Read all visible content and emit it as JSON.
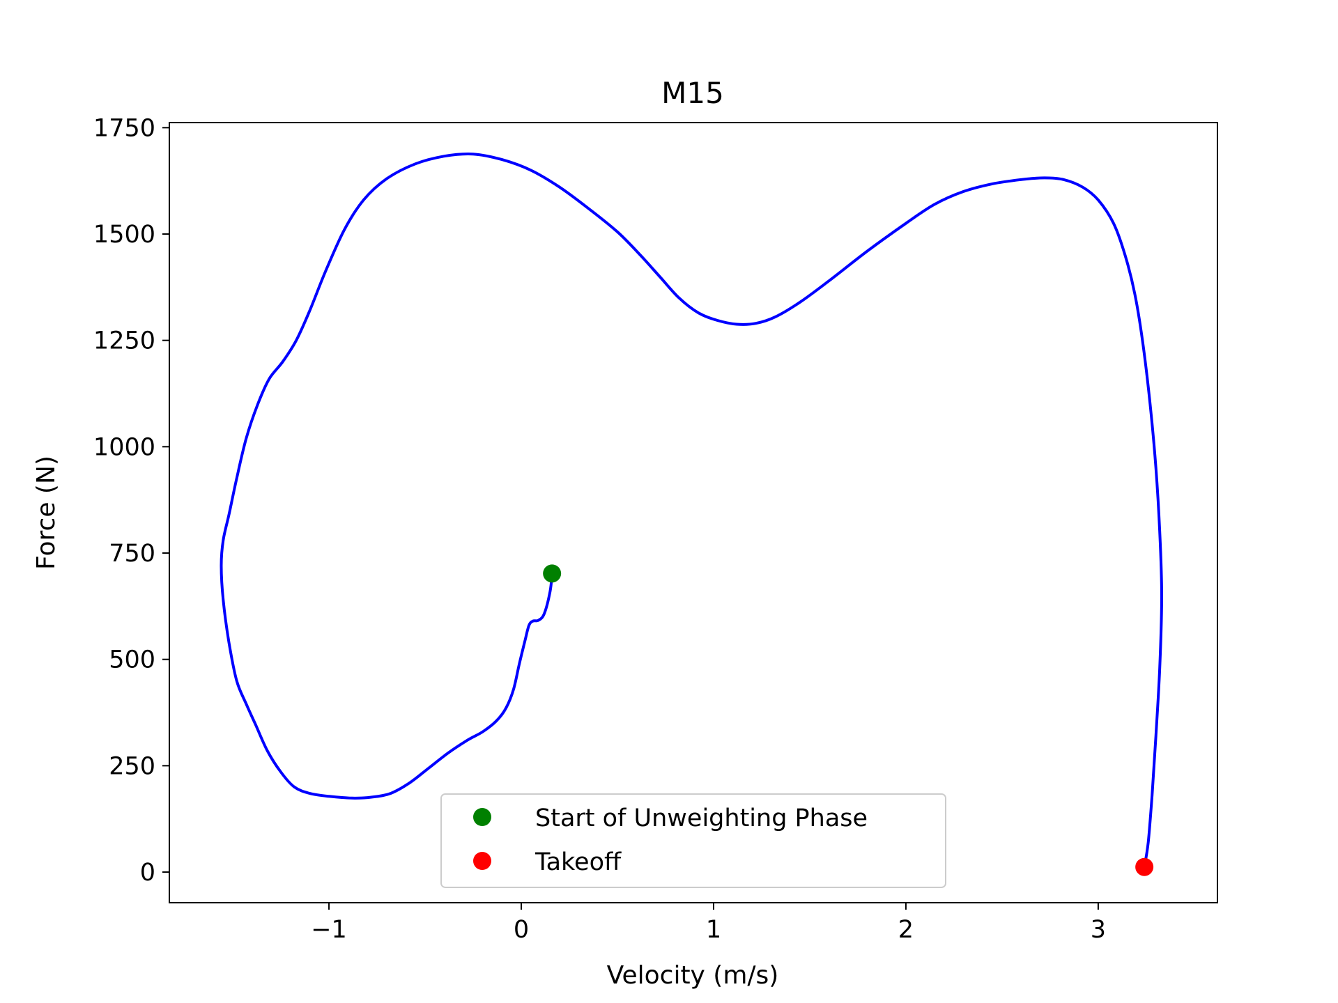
{
  "chart_data": {
    "type": "line",
    "title": "M15",
    "xlabel": "Velocity (m/s)",
    "ylabel": "Force (N)",
    "xlim": [
      -1.83,
      3.62
    ],
    "ylim": [
      -72,
      1762
    ],
    "xticks": [
      -1,
      0,
      1,
      2,
      3
    ],
    "xtick_labels": [
      "−1",
      "0",
      "1",
      "2",
      "3"
    ],
    "yticks": [
      0,
      250,
      500,
      750,
      1000,
      1250,
      1500,
      1750
    ],
    "ytick_labels": [
      "0",
      "250",
      "500",
      "750",
      "1000",
      "1250",
      "1500",
      "1750"
    ],
    "grid": false,
    "legend_position": "lower-center",
    "colors": {
      "curve": "#0000ff",
      "start": "#008000",
      "takeoff": "#ff0000"
    },
    "series": [
      {
        "color": "#0000ff",
        "points": [
          [
            0.16,
            700
          ],
          [
            0.15,
            660
          ],
          [
            0.12,
            608
          ],
          [
            0.09,
            592
          ],
          [
            0.06,
            590
          ],
          [
            0.04,
            580
          ],
          [
            0.02,
            545
          ],
          [
            -0.01,
            490
          ],
          [
            -0.04,
            430
          ],
          [
            -0.08,
            385
          ],
          [
            -0.13,
            355
          ],
          [
            -0.2,
            330
          ],
          [
            -0.28,
            310
          ],
          [
            -0.38,
            280
          ],
          [
            -0.48,
            245
          ],
          [
            -0.58,
            210
          ],
          [
            -0.68,
            185
          ],
          [
            -0.78,
            176
          ],
          [
            -0.88,
            174
          ],
          [
            -1.0,
            178
          ],
          [
            -1.1,
            185
          ],
          [
            -1.18,
            200
          ],
          [
            -1.25,
            235
          ],
          [
            -1.32,
            285
          ],
          [
            -1.38,
            345
          ],
          [
            -1.43,
            395
          ],
          [
            -1.48,
            450
          ],
          [
            -1.52,
            540
          ],
          [
            -1.55,
            640
          ],
          [
            -1.56,
            720
          ],
          [
            -1.55,
            780
          ],
          [
            -1.52,
            840
          ],
          [
            -1.48,
            925
          ],
          [
            -1.43,
            1020
          ],
          [
            -1.37,
            1100
          ],
          [
            -1.31,
            1160
          ],
          [
            -1.24,
            1200
          ],
          [
            -1.17,
            1250
          ],
          [
            -1.1,
            1320
          ],
          [
            -1.02,
            1410
          ],
          [
            -0.92,
            1510
          ],
          [
            -0.82,
            1580
          ],
          [
            -0.7,
            1630
          ],
          [
            -0.55,
            1665
          ],
          [
            -0.4,
            1683
          ],
          [
            -0.25,
            1688
          ],
          [
            -0.1,
            1675
          ],
          [
            0.05,
            1650
          ],
          [
            0.2,
            1610
          ],
          [
            0.35,
            1560
          ],
          [
            0.5,
            1505
          ],
          [
            0.62,
            1450
          ],
          [
            0.72,
            1400
          ],
          [
            0.82,
            1350
          ],
          [
            0.92,
            1315
          ],
          [
            1.02,
            1297
          ],
          [
            1.12,
            1288
          ],
          [
            1.22,
            1290
          ],
          [
            1.32,
            1305
          ],
          [
            1.45,
            1340
          ],
          [
            1.6,
            1390
          ],
          [
            1.8,
            1460
          ],
          [
            2.0,
            1525
          ],
          [
            2.15,
            1570
          ],
          [
            2.3,
            1600
          ],
          [
            2.45,
            1618
          ],
          [
            2.6,
            1628
          ],
          [
            2.72,
            1632
          ],
          [
            2.82,
            1628
          ],
          [
            2.92,
            1610
          ],
          [
            3.0,
            1580
          ],
          [
            3.08,
            1525
          ],
          [
            3.14,
            1450
          ],
          [
            3.19,
            1360
          ],
          [
            3.23,
            1250
          ],
          [
            3.27,
            1100
          ],
          [
            3.3,
            950
          ],
          [
            3.32,
            800
          ],
          [
            3.33,
            650
          ],
          [
            3.32,
            480
          ],
          [
            3.3,
            320
          ],
          [
            3.28,
            180
          ],
          [
            3.26,
            70
          ],
          [
            3.24,
            12
          ]
        ]
      }
    ],
    "markers": [
      {
        "label": "Start of Unweighting Phase",
        "x": 0.16,
        "y": 702,
        "color": "#008000"
      },
      {
        "label": "Takeoff",
        "x": 3.24,
        "y": 12,
        "color": "#ff0000"
      }
    ]
  }
}
